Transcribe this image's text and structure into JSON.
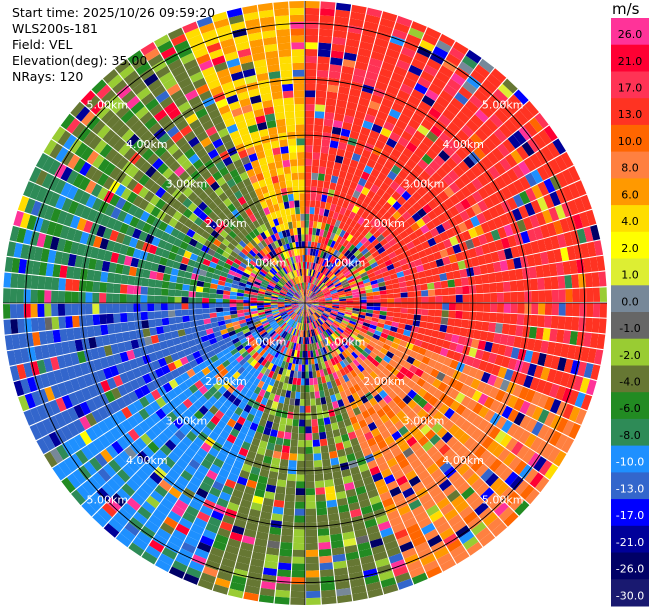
{
  "header": {
    "start_time": "Start time: 2025/10/26 09:59:20",
    "instrument": "WLS200s-181",
    "field": "Field: VEL",
    "elevation": "Elevation(deg): 35.00",
    "nrays": "NRays: 120"
  },
  "colorbar": {
    "unit": "m/s",
    "ticks": [
      "26.0",
      "21.0",
      "17.0",
      "13.0",
      "10.0",
      "8.0",
      "6.0",
      "4.0",
      "2.0",
      "1.0",
      "0.0",
      "-1.0",
      "-2.0",
      "-4.0",
      "-6.0",
      "-8.0",
      "-10.0",
      "-13.0",
      "-17.0",
      "-21.0",
      "-26.0",
      "-30.0"
    ],
    "colors": [
      "#FF3399",
      "#FF0033",
      "#FF3355",
      "#FF3322",
      "#FF6600",
      "#FF8040",
      "#FF9900",
      "#FFDD00",
      "#FFFF00",
      "#DDEE33",
      "#778899",
      "#666666",
      "#99CC33",
      "#667733",
      "#228B22",
      "#2E8B57",
      "#1E90FF",
      "#3366CC",
      "#0000FF",
      "#000099",
      "#000066",
      "#191970"
    ]
  },
  "chart_data": {
    "type": "heatmap",
    "projection": "polar (PPI)",
    "field": "VEL",
    "unit": "m/s",
    "elevation_deg": 35.0,
    "n_rays": 120,
    "range_rings_km": [
      1,
      2,
      3,
      4,
      5
    ],
    "ring_labels": [
      "1.00km",
      "2.00km",
      "3.00km",
      "4.00km",
      "5.00km"
    ],
    "value_range": [
      -30,
      26
    ],
    "sectors": [
      {
        "azimuth_from_deg": 0,
        "azimuth_to_deg": 110,
        "dominant_velocity_ms": 12
      },
      {
        "azimuth_from_deg": 110,
        "azimuth_to_deg": 160,
        "dominant_velocity_ms": 7
      },
      {
        "azimuth_from_deg": 160,
        "azimuth_to_deg": 200,
        "dominant_velocity_ms": -5
      },
      {
        "azimuth_from_deg": 200,
        "azimuth_to_deg": 240,
        "dominant_velocity_ms": -11
      },
      {
        "azimuth_from_deg": 240,
        "azimuth_to_deg": 270,
        "dominant_velocity_ms": -16
      },
      {
        "azimuth_from_deg": 270,
        "azimuth_to_deg": 300,
        "dominant_velocity_ms": -9
      },
      {
        "azimuth_from_deg": 300,
        "azimuth_to_deg": 335,
        "dominant_velocity_ms": -5
      },
      {
        "azimuth_from_deg": 335,
        "azimuth_to_deg": 360,
        "dominant_velocity_ms": 4
      }
    ],
    "grid": true
  }
}
